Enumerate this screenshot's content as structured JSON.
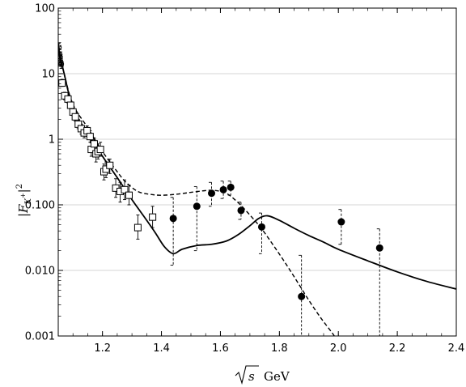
{
  "chart_data": {
    "type": "scatter",
    "title": "",
    "xlabel_text": "GeV",
    "ylabel": "|F_K+|²",
    "x_axis": {
      "min": 1.05,
      "max": 2.4,
      "ticks": [
        "1.2",
        "1.4",
        "1.6",
        "1.8",
        "2.0",
        "2.2",
        "2.4"
      ],
      "scale": "linear"
    },
    "y_axis": {
      "min": 0.001,
      "max": 100,
      "ticks": [
        "0.001",
        "0.010",
        "0.100",
        "1",
        "10",
        "100"
      ],
      "scale": "log"
    },
    "grid": {
      "horizontal": true,
      "vertical": false
    },
    "series": [
      {
        "marker": "open-square",
        "points": [
          {
            "x": 1.063,
            "y": 7.2,
            "lo": 6.4,
            "hi": 8.2
          },
          {
            "x": 1.072,
            "y": 4.6,
            "lo": 4.0,
            "hi": 5.2
          },
          {
            "x": 1.083,
            "y": 4.1,
            "lo": 3.6,
            "hi": 4.7
          },
          {
            "x": 1.092,
            "y": 3.3,
            "lo": 2.9,
            "hi": 3.8
          },
          {
            "x": 1.1,
            "y": 2.6,
            "lo": 2.3,
            "hi": 3.0
          },
          {
            "x": 1.108,
            "y": 2.2,
            "lo": 1.9,
            "hi": 2.5
          },
          {
            "x": 1.118,
            "y": 1.7,
            "lo": 1.45,
            "hi": 2.0
          },
          {
            "x": 1.128,
            "y": 1.45,
            "lo": 1.2,
            "hi": 1.7
          },
          {
            "x": 1.138,
            "y": 1.25,
            "lo": 1.05,
            "hi": 1.5
          },
          {
            "x": 1.148,
            "y": 1.35,
            "lo": 1.1,
            "hi": 1.6
          },
          {
            "x": 1.158,
            "y": 1.1,
            "lo": 0.9,
            "hi": 1.35
          },
          {
            "x": 1.162,
            "y": 0.7,
            "lo": 0.55,
            "hi": 0.88
          },
          {
            "x": 1.172,
            "y": 0.85,
            "lo": 0.68,
            "hi": 1.05
          },
          {
            "x": 1.178,
            "y": 0.6,
            "lo": 0.45,
            "hi": 0.78
          },
          {
            "x": 1.185,
            "y": 0.65,
            "lo": 0.5,
            "hi": 0.85
          },
          {
            "x": 1.193,
            "y": 0.7,
            "lo": 0.55,
            "hi": 0.9
          },
          {
            "x": 1.205,
            "y": 0.32,
            "lo": 0.24,
            "hi": 0.42
          },
          {
            "x": 1.212,
            "y": 0.35,
            "lo": 0.26,
            "hi": 0.45
          },
          {
            "x": 1.225,
            "y": 0.4,
            "lo": 0.3,
            "hi": 0.5
          },
          {
            "x": 1.245,
            "y": 0.18,
            "lo": 0.13,
            "hi": 0.25
          },
          {
            "x": 1.26,
            "y": 0.16,
            "lo": 0.11,
            "hi": 0.22
          },
          {
            "x": 1.275,
            "y": 0.17,
            "lo": 0.12,
            "hi": 0.24
          },
          {
            "x": 1.29,
            "y": 0.14,
            "lo": 0.1,
            "hi": 0.2
          },
          {
            "x": 1.32,
            "y": 0.045,
            "lo": 0.03,
            "hi": 0.07
          },
          {
            "x": 1.37,
            "y": 0.065,
            "lo": 0.045,
            "hi": 0.095
          }
        ]
      },
      {
        "marker": "open-circle-cross",
        "points": [
          {
            "x": 1.052,
            "y": 25,
            "lo": 21,
            "hi": 29
          },
          {
            "x": 1.054,
            "y": 20,
            "lo": 17,
            "hi": 24
          },
          {
            "x": 1.056,
            "y": 18,
            "lo": 15,
            "hi": 21
          },
          {
            "x": 1.058,
            "y": 15,
            "lo": 13,
            "hi": 18
          },
          {
            "x": 1.06,
            "y": 14,
            "lo": 12,
            "hi": 17
          }
        ]
      },
      {
        "marker": "filled-circle",
        "points": [
          {
            "x": 1.44,
            "y": 0.062,
            "lo": 0.012,
            "hi": 0.13
          },
          {
            "x": 1.52,
            "y": 0.095,
            "lo": 0.02,
            "hi": 0.19
          },
          {
            "x": 1.57,
            "y": 0.15,
            "lo": 0.095,
            "hi": 0.22
          },
          {
            "x": 1.61,
            "y": 0.17,
            "lo": 0.125,
            "hi": 0.23
          },
          {
            "x": 1.635,
            "y": 0.185,
            "lo": 0.14,
            "hi": 0.23
          },
          {
            "x": 1.67,
            "y": 0.082,
            "lo": 0.06,
            "hi": 0.11
          },
          {
            "x": 1.74,
            "y": 0.046,
            "lo": 0.018,
            "hi": 0.075
          },
          {
            "x": 1.875,
            "y": 0.004,
            "lo": 0.0002,
            "hi": 0.017
          },
          {
            "x": 2.01,
            "y": 0.055,
            "lo": 0.025,
            "hi": 0.085
          },
          {
            "x": 2.14,
            "y": 0.022,
            "lo": 0.0002,
            "hi": 0.043
          }
        ]
      }
    ],
    "curves": [
      {
        "style": "solid",
        "points": [
          [
            1.05,
            25
          ],
          [
            1.07,
            10
          ],
          [
            1.1,
            3.0
          ],
          [
            1.15,
            1.2
          ],
          [
            1.2,
            0.55
          ],
          [
            1.25,
            0.26
          ],
          [
            1.3,
            0.12
          ],
          [
            1.35,
            0.058
          ],
          [
            1.38,
            0.037
          ],
          [
            1.41,
            0.023
          ],
          [
            1.44,
            0.018
          ],
          [
            1.47,
            0.021
          ],
          [
            1.52,
            0.024
          ],
          [
            1.57,
            0.025
          ],
          [
            1.62,
            0.028
          ],
          [
            1.66,
            0.035
          ],
          [
            1.7,
            0.048
          ],
          [
            1.73,
            0.062
          ],
          [
            1.76,
            0.068
          ],
          [
            1.8,
            0.058
          ],
          [
            1.85,
            0.044
          ],
          [
            1.9,
            0.034
          ],
          [
            1.95,
            0.027
          ],
          [
            2.0,
            0.021
          ],
          [
            2.1,
            0.014
          ],
          [
            2.2,
            0.0095
          ],
          [
            2.3,
            0.0068
          ],
          [
            2.4,
            0.0052
          ]
        ]
      },
      {
        "style": "dashed",
        "points": [
          [
            1.05,
            25
          ],
          [
            1.07,
            10
          ],
          [
            1.1,
            3.4
          ],
          [
            1.15,
            1.5
          ],
          [
            1.2,
            0.65
          ],
          [
            1.25,
            0.32
          ],
          [
            1.28,
            0.22
          ],
          [
            1.32,
            0.16
          ],
          [
            1.36,
            0.145
          ],
          [
            1.4,
            0.14
          ],
          [
            1.45,
            0.145
          ],
          [
            1.5,
            0.155
          ],
          [
            1.55,
            0.165
          ],
          [
            1.58,
            0.166
          ],
          [
            1.62,
            0.15
          ],
          [
            1.66,
            0.108
          ],
          [
            1.7,
            0.07
          ],
          [
            1.74,
            0.043
          ],
          [
            1.78,
            0.024
          ],
          [
            1.82,
            0.013
          ],
          [
            1.86,
            0.0068
          ],
          [
            1.9,
            0.0035
          ],
          [
            1.94,
            0.0019
          ],
          [
            1.98,
            0.0011
          ],
          [
            2.0,
            0.0008
          ]
        ]
      }
    ]
  }
}
